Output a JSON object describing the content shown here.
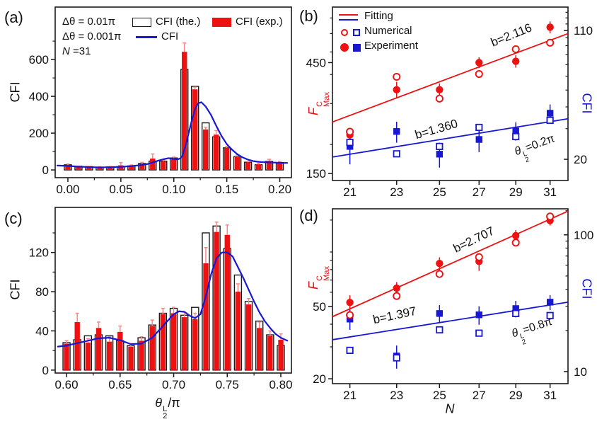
{
  "colors": {
    "red": "#ed1111",
    "blue": "#1717d4",
    "err": "#ff8585",
    "axis": "#1a1a1a",
    "open_fill": "#ffffff"
  },
  "chart_data": [
    {
      "id": "a",
      "type": "bar",
      "panel_label": "(a)",
      "ylabel": "CFI",
      "box": {
        "l": 78,
        "t": 10,
        "r": 412,
        "b": 251
      },
      "xscale": "linear",
      "xlim": [
        -0.012,
        0.211
      ],
      "ylim": [
        -42,
        885
      ],
      "xticks": {
        "vals": [
          0,
          0.05,
          0.1,
          0.15,
          0.2
        ],
        "labels": [
          "0.00",
          "0.05",
          "0.10",
          "0.15",
          "0.20"
        ]
      },
      "xminor": [
        0.025,
        0.075,
        0.125,
        0.175
      ],
      "yticks": {
        "vals": [
          0,
          200,
          400,
          600
        ],
        "labels": [
          "0",
          "200",
          "400",
          "600"
        ]
      },
      "yminor": [
        100,
        300,
        500,
        700
      ],
      "categories": [
        0.0,
        0.01,
        0.02,
        0.03,
        0.04,
        0.05,
        0.06,
        0.07,
        0.08,
        0.09,
        0.1,
        0.11,
        0.12,
        0.13,
        0.14,
        0.15,
        0.16,
        0.17,
        0.18,
        0.19,
        0.2
      ],
      "theory": [
        28,
        20,
        18,
        15,
        16,
        18,
        22,
        35,
        48,
        48,
        65,
        546,
        454,
        256,
        180,
        120,
        72,
        42,
        28,
        46,
        36
      ],
      "exp": [
        26,
        16,
        16,
        14,
        15,
        25,
        22,
        33,
        62,
        46,
        60,
        642,
        438,
        220,
        192,
        120,
        73,
        40,
        30,
        50,
        40
      ],
      "err": [
        6,
        5,
        4,
        4,
        4,
        15,
        5,
        8,
        25,
        8,
        10,
        48,
        12,
        12,
        22,
        8,
        8,
        6,
        6,
        8,
        6
      ],
      "line": {
        "x": [
          -0.01,
          0.0,
          0.01,
          0.02,
          0.03,
          0.04,
          0.05,
          0.06,
          0.07,
          0.075,
          0.08,
          0.085,
          0.09,
          0.095,
          0.1,
          0.103,
          0.106,
          0.108,
          0.111,
          0.114,
          0.117,
          0.12,
          0.123,
          0.126,
          0.13,
          0.135,
          0.14,
          0.145,
          0.15,
          0.155,
          0.16,
          0.165,
          0.17,
          0.175,
          0.18,
          0.185,
          0.19,
          0.195,
          0.2,
          0.207
        ],
        "y": [
          24,
          22,
          18,
          15.5,
          14,
          15,
          17,
          21,
          27,
          32,
          40,
          50,
          58,
          64,
          60,
          57,
          62,
          75,
          130,
          200,
          270,
          330,
          362,
          368,
          345,
          300,
          240,
          185,
          140,
          110,
          85,
          68,
          56,
          48,
          44,
          42,
          41,
          40,
          39,
          38
        ]
      },
      "legend": {
        "dtheta1": "Δθ = 0.01π",
        "the_label": "CFI (the.)",
        "exp_label": "CFI (exp.)",
        "dtheta2": "Δθ = 0.001π",
        "line_label": "CFI",
        "n_rich": [
          {
            "t": "N",
            "i": true
          },
          {
            "t": " =31"
          }
        ]
      }
    },
    {
      "id": "b",
      "type": "scatter",
      "panel_label": "(b)",
      "box": {
        "l": 470,
        "t": 10,
        "r": 803,
        "b": 255
      },
      "xscale": "log",
      "xlim": [
        20.3,
        32.1
      ],
      "xticks": {
        "vals": [
          21,
          23,
          25,
          27,
          29,
          31
        ],
        "labels": [
          "21",
          "23",
          "25",
          "27",
          "29",
          "31"
        ]
      },
      "left": {
        "lim": [
          140,
          780
        ],
        "ticks": {
          "vals": [
            150,
            450
          ],
          "labels": [
            "150",
            "450"
          ]
        },
        "minor": [
          200,
          300,
          400,
          500,
          600,
          700
        ]
      },
      "right": {
        "lim": [
          15.1,
          150
        ],
        "ticks": {
          "vals": [
            20,
            110
          ],
          "labels": [
            "20",
            "110"
          ]
        },
        "minor": [
          30,
          40,
          50,
          60,
          70,
          80,
          90,
          100,
          120,
          130,
          140
        ]
      },
      "x": [
        21,
        23,
        25,
        27,
        29,
        31
      ],
      "red": {
        "exp": [
          220,
          344,
          344,
          450,
          456,
          639
        ],
        "exp_err": [
          12,
          28,
          22,
          24,
          28,
          38
        ],
        "num": [
          227,
          391,
          315,
          402,
          514,
          548
        ],
        "fit": {
          "x": [
            20.3,
            32.1
          ],
          "y": [
            250,
            600
          ]
        }
      },
      "blue": {
        "exp": [
          23.7,
          28.9,
          21.4,
          26.0,
          29.1,
          36.8
        ],
        "exp_err": [
          5,
          4,
          3.5,
          4,
          3.5,
          4.5
        ],
        "num": [
          25.0,
          21.5,
          23.7,
          30.5,
          27.0,
          33.5
        ],
        "fit": {
          "x": [
            20.3,
            32.1
          ],
          "y": [
            20.6,
            34.2
          ]
        }
      },
      "ylabel_left_rich": [
        {
          "t": "F",
          "i": true
        },
        {
          "sup": "C",
          "sub": "Max"
        }
      ],
      "ylabel_right": "CFI",
      "annotations": {
        "red_b": "b=2.116",
        "blue_b": "b=1.360",
        "theta": [
          {
            "t": "θ",
            "i": true
          },
          {
            "sup": "L",
            "sub": "2"
          },
          {
            "t": "=0.2π"
          }
        ]
      },
      "legend": {
        "fitting": "Fitting",
        "numerical": "Numerical",
        "experiment": "Experiment"
      }
    },
    {
      "id": "c",
      "type": "bar",
      "panel_label": "(c)",
      "ylabel": "CFI",
      "xlabel_rich": [
        {
          "t": "θ",
          "i": true
        },
        {
          "sup": "L",
          "sub": "2"
        },
        {
          "t": "/π"
        }
      ],
      "box": {
        "l": 78,
        "t": 293,
        "r": 412,
        "b": 527
      },
      "xscale": "linear",
      "xlim": [
        0.5894,
        0.8099
      ],
      "ylim": [
        -3,
        166
      ],
      "xticks": {
        "vals": [
          0.6,
          0.65,
          0.7,
          0.75,
          0.8
        ],
        "labels": [
          "0.60",
          "0.65",
          "0.70",
          "0.75",
          "0.80"
        ]
      },
      "xminor": [
        0.625,
        0.675,
        0.725,
        0.775
      ],
      "yticks": {
        "vals": [
          0,
          40,
          80,
          120
        ],
        "labels": [
          "0",
          "40",
          "80",
          "120"
        ]
      },
      "yminor": [
        20,
        60,
        100,
        140
      ],
      "categories": [
        0.6,
        0.61,
        0.62,
        0.63,
        0.64,
        0.65,
        0.66,
        0.67,
        0.68,
        0.69,
        0.7,
        0.71,
        0.72,
        0.73,
        0.74,
        0.75,
        0.76,
        0.77,
        0.78,
        0.79,
        0.8
      ],
      "theory": [
        28,
        31,
        35,
        36,
        35,
        30,
        25,
        33,
        46,
        58,
        63,
        56,
        64,
        140,
        147,
        124,
        97,
        70,
        50,
        36,
        25
      ],
      "exp": [
        27,
        49,
        28,
        43,
        29,
        39,
        24,
        30,
        45,
        57,
        58,
        54,
        52,
        109,
        141,
        138,
        80,
        67,
        43,
        35,
        31
      ],
      "err": [
        3,
        9,
        4,
        6,
        5,
        6,
        3,
        4,
        6,
        6,
        6,
        5,
        6,
        16,
        10,
        10,
        8,
        6,
        6,
        5,
        6
      ],
      "line": {
        "x": [
          0.592,
          0.6,
          0.61,
          0.62,
          0.63,
          0.64,
          0.65,
          0.66,
          0.67,
          0.68,
          0.69,
          0.7,
          0.705,
          0.71,
          0.715,
          0.72,
          0.725,
          0.73,
          0.735,
          0.74,
          0.745,
          0.75,
          0.755,
          0.76,
          0.765,
          0.77,
          0.775,
          0.78,
          0.785,
          0.79,
          0.795,
          0.8,
          0.806
        ],
        "y": [
          24,
          25,
          27.5,
          30,
          32.5,
          33,
          30.5,
          26.5,
          27,
          33,
          45,
          57,
          60,
          59.5,
          55.5,
          53,
          57,
          75,
          98,
          114,
          120,
          120,
          116,
          105,
          94,
          82,
          70,
          59,
          50,
          43,
          37,
          33,
          30
        ]
      }
    },
    {
      "id": "d",
      "type": "scatter",
      "panel_label": "(d)",
      "xlabel": "N",
      "box": {
        "l": 470,
        "t": 295,
        "r": 803,
        "b": 542
      },
      "xscale": "log",
      "xlim": [
        20.3,
        32.1
      ],
      "xticks": {
        "vals": [
          21,
          23,
          25,
          27,
          29,
          31
        ],
        "labels": [
          "21",
          "23",
          "25",
          "27",
          "29",
          "31"
        ]
      },
      "left": {
        "lim": [
          18.8,
          173
        ],
        "ticks": {
          "vals": [
            20,
            50
          ],
          "labels": [
            "20",
            "50"
          ]
        },
        "minor": [
          30,
          40,
          60,
          70,
          80,
          90,
          100,
          150
        ]
      },
      "right": {
        "lim": [
          8.16,
          155
        ],
        "ticks": {
          "vals": [
            10,
            100
          ],
          "labels": [
            "10",
            "100"
          ]
        },
        "minor": [
          20,
          30,
          40,
          50,
          60,
          70,
          80,
          90,
          150
        ]
      },
      "x": [
        21,
        23,
        25,
        27,
        29,
        31
      ],
      "red": {
        "exp": [
          52.7,
          63.2,
          86.5,
          88.7,
          123,
          149
        ],
        "exp_err": [
          5,
          5,
          7,
          10,
          9,
          9
        ],
        "num": [
          44.9,
          57.2,
          75.6,
          93.7,
          112.6,
          157
        ],
        "fit": {
          "x": [
            20.3,
            32.1
          ],
          "y": [
            44,
            168
          ]
        }
      },
      "blue": {
        "exp": [
          24.2,
          13.0,
          26.6,
          26.0,
          28.9,
          32.2
        ],
        "exp_err": [
          4,
          2.5,
          4,
          4,
          4,
          4
        ],
        "num": [
          14.3,
          12.6,
          20.2,
          19.1,
          26.6,
          25.7
        ],
        "fit": {
          "x": [
            20.3,
            32.1
          ],
          "y": [
            17.1,
            32.2
          ]
        }
      },
      "ylabel_left_rich": [
        {
          "t": "F",
          "i": true
        },
        {
          "sup": "C",
          "sub": "Max"
        }
      ],
      "ylabel_right": "CFI",
      "annotations": {
        "red_b": "b=2.707",
        "blue_b": "b=1.397",
        "theta": [
          {
            "t": "θ",
            "i": true
          },
          {
            "sup": "L",
            "sub": "2"
          },
          {
            "t": "=0.8π"
          }
        ]
      }
    }
  ]
}
